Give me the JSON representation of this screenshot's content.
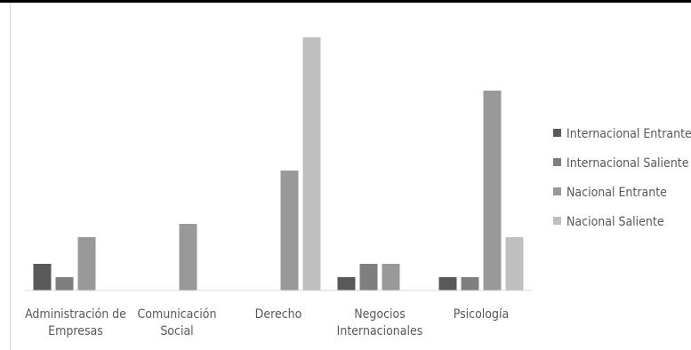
{
  "chart_data": {
    "type": "bar",
    "title": "",
    "xlabel": "",
    "ylabel": "",
    "categories": [
      [
        "Administración de",
        "Empresas"
      ],
      [
        "Comunicación",
        "Social"
      ],
      [
        "Derecho"
      ],
      [
        "Negocios",
        "Internacionales"
      ],
      [
        "Psicología"
      ]
    ],
    "ylim": [
      0,
      19
    ],
    "grid": false,
    "legend_position": "right",
    "series": [
      {
        "name": "Internacional Entrante",
        "color": "#595959",
        "values": [
          2,
          0,
          0,
          1,
          1
        ]
      },
      {
        "name": "Internacional Saliente",
        "color": "#7f7f7f",
        "values": [
          1,
          0,
          0,
          2,
          1
        ]
      },
      {
        "name": "Nacional Entrante",
        "color": "#999999",
        "values": [
          4,
          5,
          9,
          2,
          15
        ]
      },
      {
        "name": "Nacional Saliente",
        "color": "#bfbfbf",
        "values": [
          0,
          0,
          19,
          0,
          4
        ]
      }
    ]
  }
}
